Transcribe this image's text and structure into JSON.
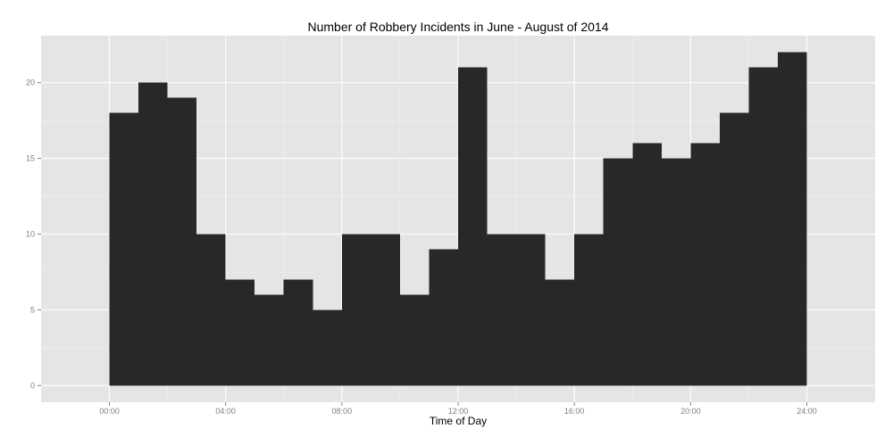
{
  "chart_data": {
    "type": "bar",
    "title": "Number of Robbery Incidents in June - August of 2014",
    "xlabel": "Time of Day",
    "ylabel": "",
    "x_ticks": [
      "00:00",
      "04:00",
      "08:00",
      "12:00",
      "16:00",
      "20:00",
      "24:00"
    ],
    "y_ticks": [
      "0",
      "5",
      "10",
      "15",
      "20"
    ],
    "xlim_hours": [
      -2.35,
      26.35
    ],
    "ylim": [
      -1.1,
      23.1
    ],
    "bin_width_hours": 1,
    "bins_start_hours": [
      0,
      1,
      2,
      3,
      4,
      5,
      6,
      7,
      8,
      9,
      10,
      11,
      12,
      13,
      14,
      15,
      16,
      17,
      18,
      19,
      20,
      21,
      22,
      23
    ],
    "values": [
      18,
      20,
      19,
      10,
      7,
      6,
      7,
      5,
      10,
      10,
      6,
      9,
      21,
      10,
      10,
      7,
      10,
      15,
      16,
      15,
      16,
      18,
      21,
      22
    ],
    "grid": true,
    "legend": "none",
    "colors": {
      "bar": "#282828",
      "panel": "#e5e5e5",
      "grid_major": "#ffffff",
      "grid_minor": "#f2f2f2",
      "tick": "#7f7f7f"
    }
  }
}
